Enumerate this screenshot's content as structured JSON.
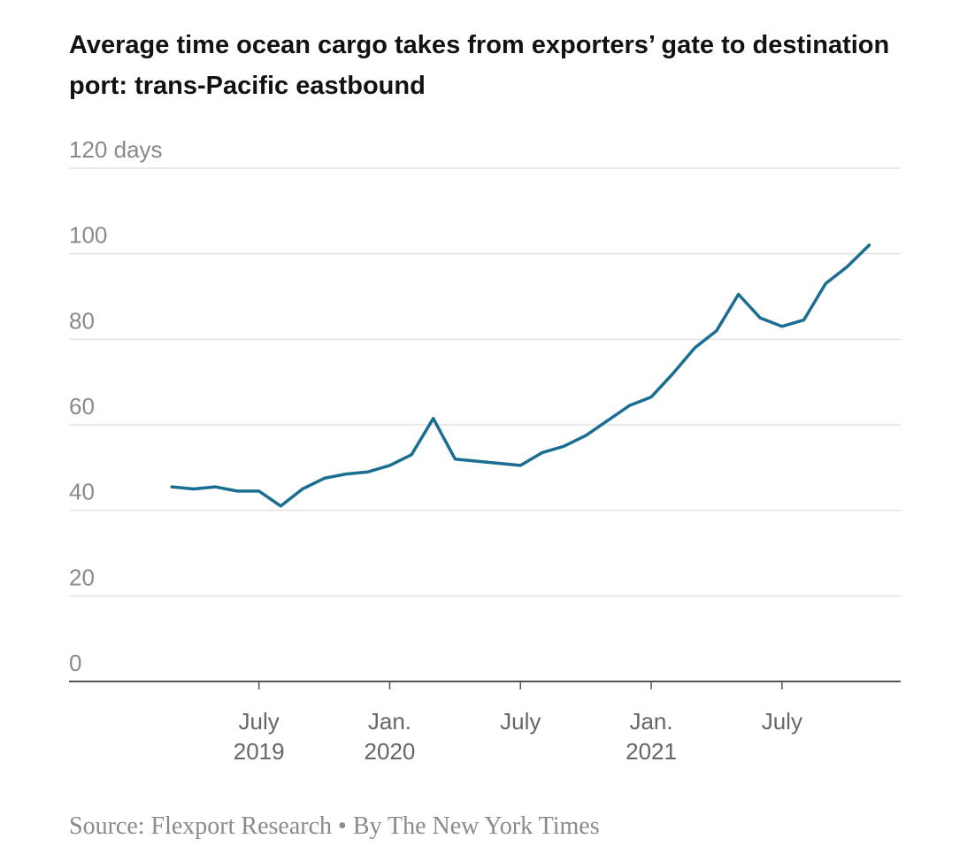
{
  "chart_data": {
    "type": "line",
    "title": "Average time ocean cargo takes from exporters’ gate to destination port: trans-Pacific eastbound",
    "source": "Source: Flexport Research • By The New York Times",
    "x": [
      "2019-03",
      "2019-04",
      "2019-05",
      "2019-06",
      "2019-07",
      "2019-08",
      "2019-09",
      "2019-10",
      "2019-11",
      "2019-12",
      "2020-01",
      "2020-02",
      "2020-03",
      "2020-04",
      "2020-05",
      "2020-06",
      "2020-07",
      "2020-08",
      "2020-09",
      "2020-10",
      "2020-11",
      "2020-12",
      "2021-01",
      "2021-02",
      "2021-03",
      "2021-04",
      "2021-05",
      "2021-06",
      "2021-07",
      "2021-08",
      "2021-09",
      "2021-10",
      "2021-11"
    ],
    "series": [
      {
        "color": "#1a6e91",
        "values": [
          45.5,
          45,
          45.5,
          44.5,
          44.5,
          41,
          45,
          47.5,
          48.5,
          49,
          50.5,
          53,
          61.5,
          52,
          51.5,
          51,
          50.5,
          53.5,
          55,
          57.5,
          61,
          64.5,
          66.5,
          72,
          78,
          82,
          90.5,
          85,
          83,
          84.5,
          93,
          97,
          102
        ]
      }
    ],
    "xlim": [
      "2018-10",
      "2021-12"
    ],
    "xticks": [
      {
        "value": "2019-07",
        "label": "July 2019"
      },
      {
        "value": "2020-01",
        "label": "Jan. 2020"
      },
      {
        "value": "2020-07",
        "label": "July"
      },
      {
        "value": "2021-01",
        "label": "Jan. 2021"
      },
      {
        "value": "2021-07",
        "label": "July"
      }
    ],
    "ylim": [
      0,
      120
    ],
    "yticks": [
      0,
      20,
      40,
      60,
      80,
      100,
      {
        "value": 120,
        "label": "120 days"
      }
    ],
    "grid": true
  }
}
